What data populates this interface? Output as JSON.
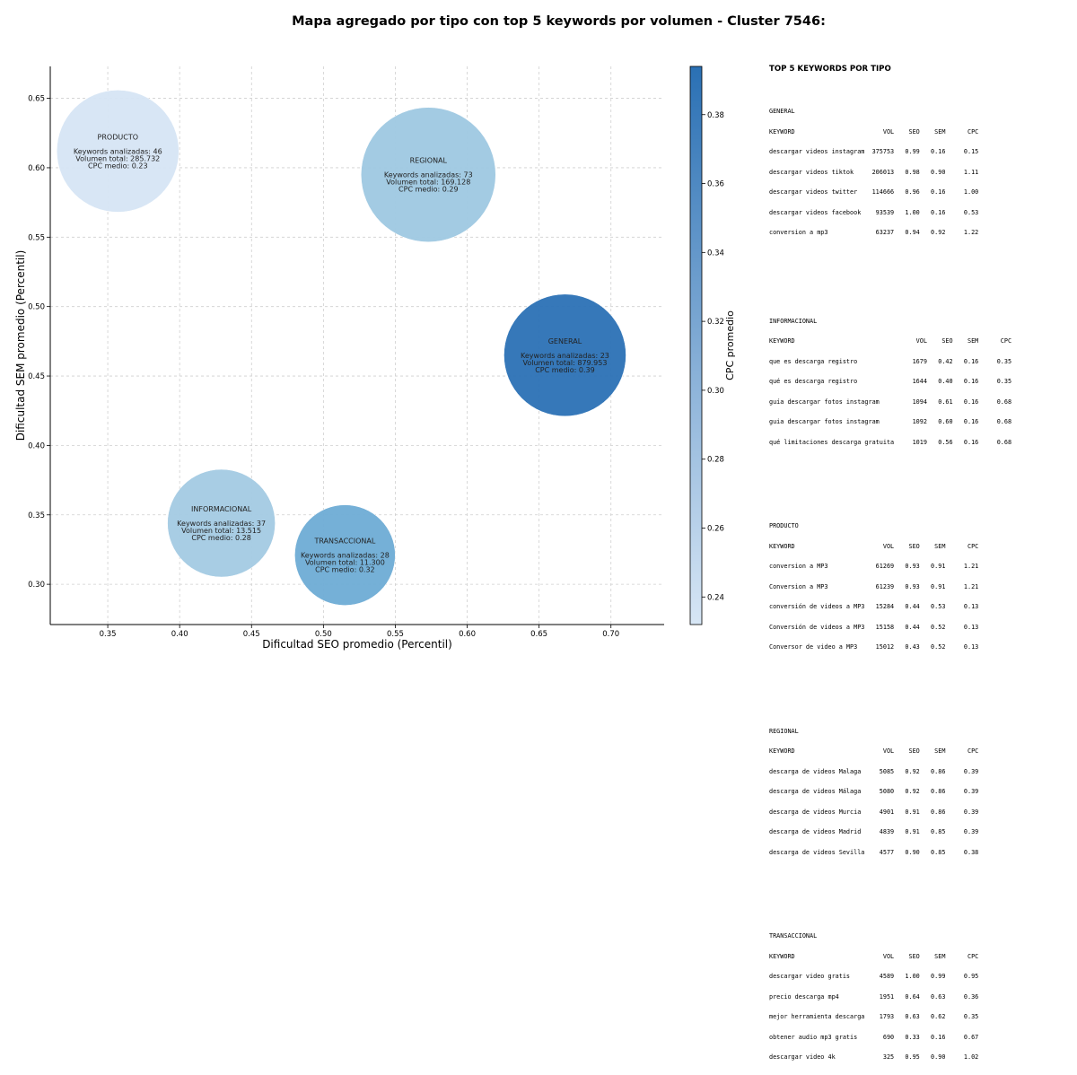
{
  "title": "Mapa agregado por tipo con top 5 keywords por volumen - Cluster 7546:",
  "chart_data": {
    "type": "scatter",
    "subtype": "bubble",
    "xlabel": "Dificultad SEO promedio (Percentil)",
    "ylabel": "Dificultad SEM promedio (Percentil)",
    "xlim": [
      0.31,
      0.737
    ],
    "ylim": [
      0.271,
      0.673
    ],
    "xticks": [
      "0.35",
      "0.40",
      "0.45",
      "0.50",
      "0.55",
      "0.60",
      "0.65",
      "0.70"
    ],
    "yticks": [
      "0.30",
      "0.35",
      "0.40",
      "0.45",
      "0.50",
      "0.55",
      "0.60",
      "0.65"
    ],
    "grid": true,
    "colorbar": {
      "label": "CPC promedio",
      "range": [
        0.232,
        0.394
      ],
      "ticks": [
        "0.24",
        "0.26",
        "0.28",
        "0.30",
        "0.32",
        "0.34",
        "0.36",
        "0.38"
      ],
      "color_low": "#d7e6f5",
      "color_high": "#2a70b4"
    },
    "count_label": "Keywords analizadas:",
    "volume_label": "Volumen total:",
    "cpc_label": "CPC medio:",
    "points": [
      {
        "name": "PRODUCTO",
        "x": 0.357,
        "y": 0.612,
        "keywords": "46",
        "volume": "285.732",
        "cpc": "0.23",
        "cpc_value": 0.23,
        "color": "#d6e5f4"
      },
      {
        "name": "REGIONAL",
        "x": 0.573,
        "y": 0.595,
        "keywords": "73",
        "volume": "169.128",
        "cpc": "0.29",
        "cpc_value": 0.29,
        "color": "#9ec8e2"
      },
      {
        "name": "GENERAL",
        "x": 0.668,
        "y": 0.465,
        "keywords": "23",
        "volume": "879.953",
        "cpc": "0.39",
        "cpc_value": 0.39,
        "color": "#2b71b5"
      },
      {
        "name": "INFORMACIONAL",
        "x": 0.429,
        "y": 0.344,
        "keywords": "37",
        "volume": "13.515",
        "cpc": "0.28",
        "cpc_value": 0.28,
        "color": "#a3cae3"
      },
      {
        "name": "TRANSACCIONAL",
        "x": 0.515,
        "y": 0.321,
        "keywords": "28",
        "volume": "11.300",
        "cpc": "0.32",
        "cpc_value": 0.32,
        "color": "#6eacd5"
      }
    ]
  },
  "panel": {
    "title": "TOP 5 KEYWORDS POR TIPO",
    "blocks": [
      {
        "name": "GENERAL",
        "header": "KEYWORD                        VOL    SEO    SEM      CPC",
        "rows": [
          "descargar videos instagram  375753   0.99   0.16     0.15",
          "descargar videos tiktok     206013   0.98   0.90     1.11",
          "descargar videos twitter    114666   0.96   0.16     1.00",
          "descargar videos facebook    93539   1.00   0.16     0.53",
          "conversion a mp3             63237   0.94   0.92     1.22"
        ]
      },
      {
        "name": "INFORMACIONAL",
        "header": "KEYWORD                                 VOL    SEO    SEM      CPC",
        "rows": [
          "que es descarga registro               1679   0.42   0.16     0.35",
          "qué es descarga registro               1644   0.40   0.16     0.35",
          "guía descargar fotos instagram         1094   0.61   0.16     0.68",
          "guia descargar fotos instagram         1092   0.60   0.16     0.68",
          "qué limitaciones descarga gratuita     1019   0.56   0.16     0.68"
        ]
      },
      {
        "name": "PRODUCTO",
        "header": "KEYWORD                        VOL    SEO    SEM      CPC",
        "rows": [
          "conversion a MP3             61269   0.93   0.91     1.21",
          "Conversion a MP3             61239   0.93   0.91     1.21",
          "conversión de videos a MP3   15284   0.44   0.53     0.13",
          "Conversión de videos a MP3   15158   0.44   0.52     0.13",
          "Conversor de video a MP3     15012   0.43   0.52     0.13"
        ]
      },
      {
        "name": "REGIONAL",
        "header": "KEYWORD                        VOL    SEO    SEM      CPC",
        "rows": [
          "descarga de videos Malaga     5085   0.92   0.86     0.39",
          "descarga de videos Málaga     5080   0.92   0.86     0.39",
          "descarga de videos Murcia     4901   0.91   0.86     0.39",
          "descarga de videos Madrid     4839   0.91   0.85     0.39",
          "descarga de videos Sevilla    4577   0.90   0.85     0.38"
        ]
      },
      {
        "name": "TRANSACCIONAL",
        "header": "KEYWORD                        VOL    SEO    SEM      CPC",
        "rows": [
          "descargar video gratis        4589   1.00   0.99     0.95",
          "precio descarga mp4           1951   0.64   0.63     0.36",
          "mejor herramienta descarga    1793   0.63   0.62     0.35",
          "obtener audio mp3 gratis       690   0.33   0.16     0.67",
          "descargar video 4k             325   0.95   0.90     1.02"
        ]
      }
    ]
  }
}
